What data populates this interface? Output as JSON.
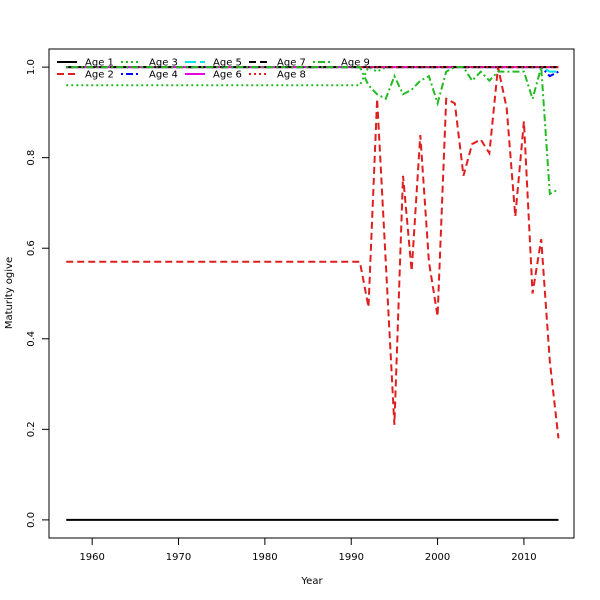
{
  "chart_data": {
    "type": "line",
    "title": "",
    "xlabel": "Year",
    "ylabel": "Maturity ogive",
    "xlim": [
      1955,
      2015.8
    ],
    "ylim": [
      -0.04,
      1.04
    ],
    "xticks": [
      1960,
      1970,
      1980,
      1990,
      2000,
      2010
    ],
    "yticks": [
      0.0,
      0.2,
      0.4,
      0.6,
      0.8,
      1.0
    ],
    "ytick_labels": [
      "0.0",
      "0.2",
      "0.4",
      "0.6",
      "0.8",
      "1.0"
    ],
    "grid": false,
    "legend_position": "top-left",
    "series": [
      {
        "name": "Age 1",
        "color": "#000000",
        "dash": "solid",
        "x": [
          1957,
          2014
        ],
        "y": [
          0.0,
          0.0
        ]
      },
      {
        "name": "Age 2",
        "color": "#DF1F1F",
        "dash": "dashed",
        "x": [
          1957,
          1991,
          1992,
          1993,
          1994,
          1995,
          1996,
          1997,
          1998,
          1999,
          2000,
          2001,
          2002,
          2003,
          2004,
          2005,
          2006,
          2007,
          2008,
          2009,
          2010,
          2011,
          2012,
          2013,
          2014
        ],
        "y": [
          0.57,
          0.57,
          0.47,
          0.93,
          0.57,
          0.21,
          0.76,
          0.55,
          0.85,
          0.57,
          0.45,
          0.93,
          0.92,
          0.76,
          0.83,
          0.84,
          0.81,
          1.0,
          0.91,
          0.67,
          0.88,
          0.5,
          0.62,
          0.35,
          0.18
        ]
      },
      {
        "name": "Age 3",
        "color": "#22BB22",
        "dash": "dotted",
        "x": [
          1957,
          1991,
          1992,
          1993,
          1994,
          1995,
          1996,
          1997,
          1998,
          1999,
          2000,
          2001,
          2002,
          2003,
          2004,
          2005,
          2006,
          2007,
          2008,
          2009,
          2010,
          2011,
          2012,
          2013,
          2014
        ],
        "y": [
          0.96,
          0.96,
          1.0,
          0.99,
          1.0,
          1.0,
          1.0,
          1.0,
          1.0,
          1.0,
          1.0,
          1.0,
          1.0,
          1.0,
          1.0,
          1.0,
          1.0,
          1.0,
          1.0,
          1.0,
          1.0,
          1.0,
          1.0,
          1.0,
          1.0
        ]
      },
      {
        "name": "Age 4",
        "color": "#0000FF",
        "dash": "dotdash",
        "x": [
          1957,
          2012,
          2013,
          2014
        ],
        "y": [
          1.0,
          1.0,
          0.98,
          0.99
        ]
      },
      {
        "name": "Age 5",
        "color": "#00E5E5",
        "dash": "longdash",
        "x": [
          1957,
          2012,
          2013,
          2014
        ],
        "y": [
          1.0,
          1.0,
          0.99,
          0.99
        ]
      },
      {
        "name": "Age 6",
        "color": "#E500E5",
        "dash": "solid",
        "x": [
          1957,
          2014
        ],
        "y": [
          1.0,
          1.0
        ]
      },
      {
        "name": "Age 7",
        "color": "#000000",
        "dash": "dashed",
        "x": [
          1957,
          2014
        ],
        "y": [
          1.0,
          1.0
        ]
      },
      {
        "name": "Age 8",
        "color": "#DF1F1F",
        "dash": "dotted",
        "x": [
          1957,
          2014
        ],
        "y": [
          1.0,
          1.0
        ]
      },
      {
        "name": "Age 9",
        "color": "#22BB22",
        "dash": "dotdash",
        "x": [
          1957,
          1991,
          1992,
          1993,
          1994,
          1995,
          1996,
          1997,
          1998,
          1999,
          2000,
          2001,
          2002,
          2003,
          2004,
          2005,
          2006,
          2007,
          2008,
          2009,
          2010,
          2011,
          2012,
          2013,
          2014
        ],
        "y": [
          1.0,
          1.0,
          0.96,
          0.94,
          0.93,
          0.98,
          0.94,
          0.95,
          0.97,
          0.98,
          0.92,
          0.99,
          1.0,
          1.0,
          0.97,
          0.99,
          0.97,
          0.99,
          0.99,
          0.99,
          0.99,
          0.93,
          1.0,
          0.72,
          0.73
        ]
      }
    ]
  }
}
